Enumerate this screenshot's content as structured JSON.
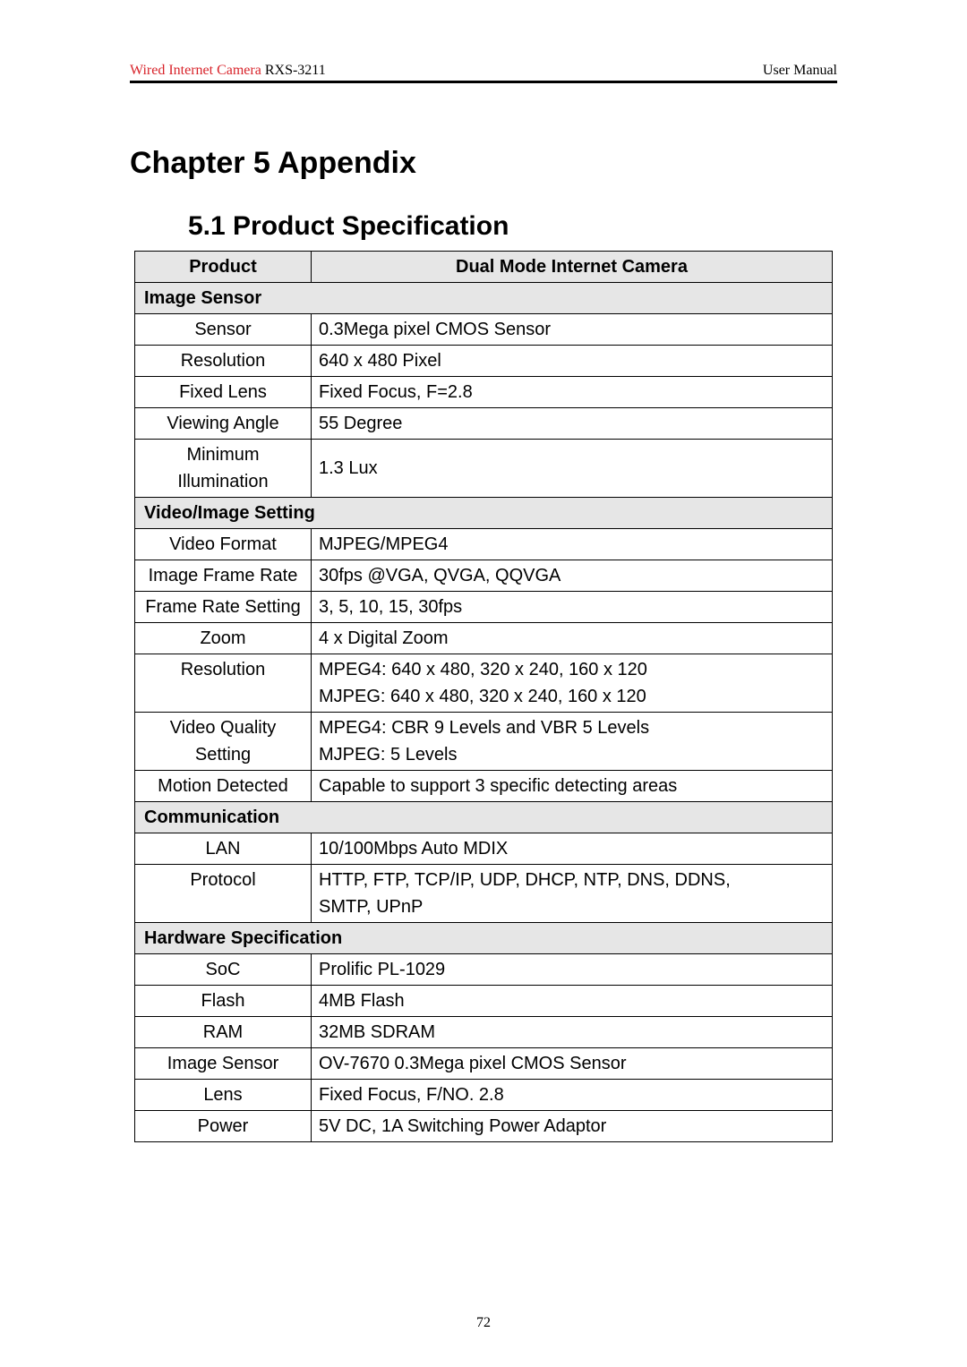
{
  "header": {
    "product_name_red": "Wired Internet Camera",
    "model": " RXS-3211",
    "right_label": "User Manual"
  },
  "chapter_title": "Chapter 5 Appendix",
  "section_title": "5.1 Product Specification",
  "page_number": "72",
  "table": {
    "header_label": "Product",
    "header_value": "Dual Mode Internet Camera",
    "sections": {
      "image_sensor": {
        "title": "Image Sensor",
        "rows": [
          {
            "label": "Sensor",
            "value": "0.3Mega pixel CMOS Sensor"
          },
          {
            "label": "Resolution",
            "value": "640 x 480 Pixel"
          },
          {
            "label": "Fixed Lens",
            "value": "Fixed Focus, F=2.8"
          },
          {
            "label": "Viewing Angle",
            "value": "55 Degree"
          },
          {
            "label": "Minimum Illumination",
            "value": "1.3 Lux"
          }
        ]
      },
      "video_image": {
        "title": "Video/Image Setting",
        "rows": [
          {
            "label": "Video Format",
            "value": "MJPEG/MPEG4"
          },
          {
            "label": "Image Frame Rate",
            "value": "30fps @VGA, QVGA, QQVGA"
          },
          {
            "label": "Frame Rate Setting",
            "value": "3, 5, 10, 15, 30fps"
          },
          {
            "label": "Zoom",
            "value": "4 x Digital Zoom"
          },
          {
            "label": "Resolution",
            "value_lines": [
              "MPEG4: 640 x 480, 320 x 240, 160 x 120",
              "MJPEG: 640 x 480, 320 x 240, 160 x 120"
            ]
          },
          {
            "label": "Video Quality Setting",
            "value_lines": [
              "MPEG4: CBR 9 Levels and VBR 5 Levels",
              "MJPEG: 5 Levels"
            ]
          },
          {
            "label": "Motion Detected",
            "value": "Capable to support 3 specific detecting areas"
          }
        ]
      },
      "communication": {
        "title": "Communication",
        "rows": [
          {
            "label": "LAN",
            "value": "10/100Mbps Auto MDIX"
          },
          {
            "label": "Protocol",
            "value_lines": [
              "HTTP, FTP, TCP/IP, UDP, DHCP, NTP, DNS, DDNS,",
              "SMTP, UPnP"
            ]
          }
        ]
      },
      "hardware": {
        "title": "Hardware Specification",
        "rows": [
          {
            "label": "SoC",
            "value": "Prolific PL-1029"
          },
          {
            "label": "Flash",
            "value": "4MB Flash"
          },
          {
            "label": "RAM",
            "value": "32MB SDRAM"
          },
          {
            "label": "Image Sensor",
            "value": "OV-7670 0.3Mega pixel CMOS Sensor"
          },
          {
            "label": "Lens",
            "value": "Fixed Focus, F/NO. 2.8"
          },
          {
            "label": "Power",
            "value": "5V DC, 1A Switching Power Adaptor"
          }
        ]
      }
    }
  },
  "colors": {
    "red": "#d8232a",
    "section_bg": "#e6e6e6",
    "border": "#000000",
    "text": "#000000",
    "background": "#ffffff"
  },
  "fonts": {
    "body_family": "Arial, Helvetica, sans-serif",
    "header_family": "Times New Roman, serif",
    "chapter_title_size_pt": 26,
    "section_title_size_pt": 22,
    "table_size_pt": 15,
    "header_size_pt": 12
  }
}
